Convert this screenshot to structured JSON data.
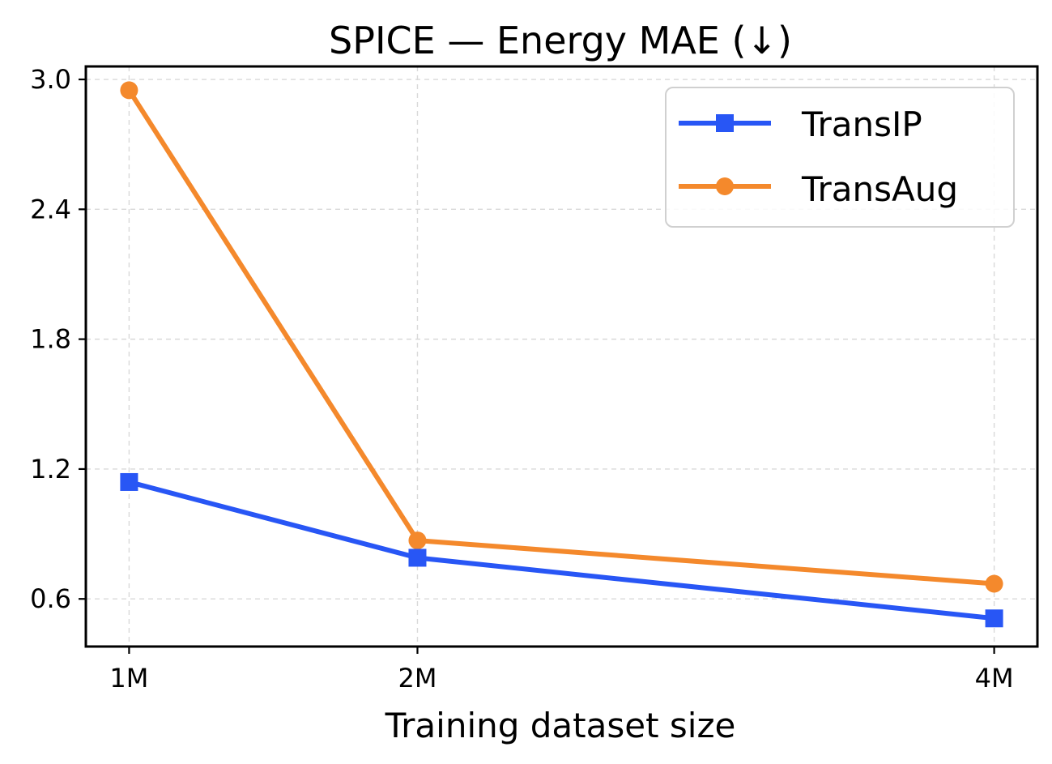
{
  "chart_data": {
    "type": "line",
    "title": "SPICE — Energy MAE (↓)",
    "xlabel": "Training dataset size",
    "ylabel": "",
    "x": [
      1,
      2,
      4
    ],
    "x_tick_labels": [
      "1M",
      "2M",
      "4M"
    ],
    "xlim": [
      0.85,
      4.15
    ],
    "ylim": [
      0.38,
      3.06
    ],
    "y_ticks": [
      0.6,
      1.2,
      1.8,
      2.4,
      3.0
    ],
    "y_tick_labels": [
      "0.6",
      "1.2",
      "1.8",
      "2.4",
      "3.0"
    ],
    "grid": true,
    "legend_position": "top-right",
    "series": [
      {
        "name": "TransIP",
        "values": [
          1.14,
          0.79,
          0.51
        ],
        "color": "#2856f5",
        "marker": "square"
      },
      {
        "name": "TransAug",
        "values": [
          2.95,
          0.87,
          0.67
        ],
        "color": "#f4892c",
        "marker": "circle"
      }
    ]
  }
}
